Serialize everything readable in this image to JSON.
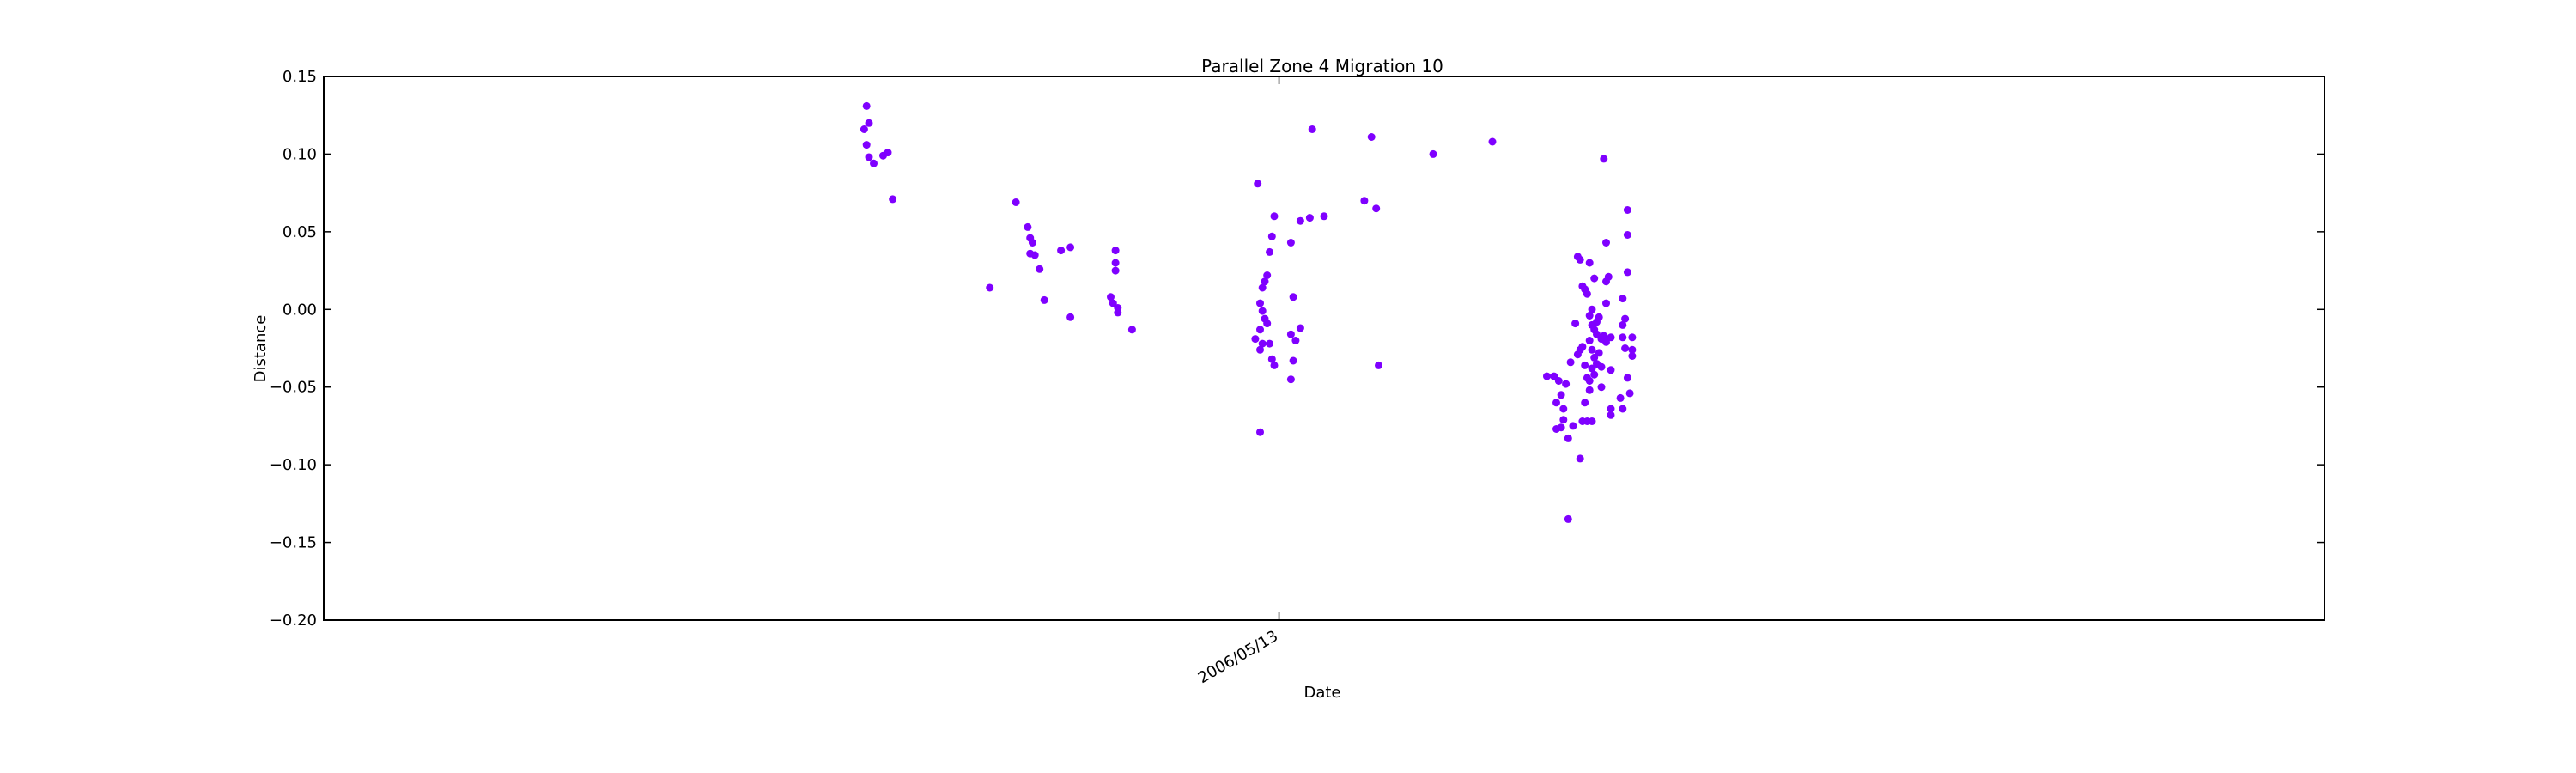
{
  "chart_data": {
    "type": "scatter",
    "title": "Parallel Zone 4 Migration 10",
    "xlabel": "Date",
    "ylabel": "Distance",
    "ylim": [
      -0.2,
      0.15
    ],
    "yticks": [
      0.15,
      0.1,
      0.05,
      0.0,
      -0.05,
      -0.1,
      -0.15,
      -0.2
    ],
    "ytick_labels": [
      "0.15",
      "0.10",
      "0.05",
      "0.00",
      "−0.05",
      "−0.10",
      "−0.15",
      "−0.20"
    ],
    "xlim": [
      "2005-04-05",
      "2007-07-28"
    ],
    "xticks": [
      "2006-05-13"
    ],
    "xtick_labels": [
      "2006/05/13"
    ],
    "grid": false,
    "legend": "none",
    "point_color": "#7f00ff",
    "points": [
      [
        "2005-11-20",
        0.131
      ],
      [
        "2005-11-21",
        0.12
      ],
      [
        "2005-11-19",
        0.116
      ],
      [
        "2005-11-20",
        0.106
      ],
      [
        "2005-11-21",
        0.098
      ],
      [
        "2005-11-23",
        0.094
      ],
      [
        "2005-11-27",
        0.099
      ],
      [
        "2005-11-29",
        0.101
      ],
      [
        "2005-12-01",
        0.071
      ],
      [
        "2006-01-11",
        0.014
      ],
      [
        "2006-01-22",
        0.069
      ],
      [
        "2006-01-27",
        0.053
      ],
      [
        "2006-01-28",
        0.046
      ],
      [
        "2006-01-29",
        0.043
      ],
      [
        "2006-01-28",
        0.036
      ],
      [
        "2006-01-30",
        0.035
      ],
      [
        "2006-02-01",
        0.026
      ],
      [
        "2006-02-03",
        0.006
      ],
      [
        "2006-02-10",
        0.038
      ],
      [
        "2006-02-14",
        0.04
      ],
      [
        "2006-02-14",
        -0.005
      ],
      [
        "2006-03-03",
        0.008
      ],
      [
        "2006-03-05",
        0.038
      ],
      [
        "2006-03-05",
        0.03
      ],
      [
        "2006-03-05",
        0.025
      ],
      [
        "2006-03-04",
        0.004
      ],
      [
        "2006-03-06",
        0.001
      ],
      [
        "2006-03-06",
        -0.002
      ],
      [
        "2006-03-12",
        -0.013
      ],
      [
        "2006-05-04",
        0.081
      ],
      [
        "2006-05-11",
        0.06
      ],
      [
        "2006-05-10",
        0.047
      ],
      [
        "2006-05-09",
        0.037
      ],
      [
        "2006-05-08",
        0.022
      ],
      [
        "2006-05-07",
        0.018
      ],
      [
        "2006-05-06",
        0.014
      ],
      [
        "2006-05-05",
        0.004
      ],
      [
        "2006-05-06",
        -0.001
      ],
      [
        "2006-05-07",
        -0.006
      ],
      [
        "2006-05-08",
        -0.009
      ],
      [
        "2006-05-05",
        -0.013
      ],
      [
        "2006-05-03",
        -0.019
      ],
      [
        "2006-05-06",
        -0.022
      ],
      [
        "2006-05-09",
        -0.022
      ],
      [
        "2006-05-05",
        -0.026
      ],
      [
        "2006-05-10",
        -0.032
      ],
      [
        "2006-05-11",
        -0.036
      ],
      [
        "2006-05-05",
        -0.079
      ],
      [
        "2006-05-18",
        0.043
      ],
      [
        "2006-05-19",
        0.008
      ],
      [
        "2006-05-18",
        -0.016
      ],
      [
        "2006-05-20",
        -0.02
      ],
      [
        "2006-05-22",
        -0.012
      ],
      [
        "2006-05-19",
        -0.033
      ],
      [
        "2006-05-18",
        -0.045
      ],
      [
        "2006-05-22",
        0.057
      ],
      [
        "2006-05-26",
        0.059
      ],
      [
        "2006-06-01",
        0.06
      ],
      [
        "2006-05-27",
        0.116
      ],
      [
        "2006-06-18",
        0.07
      ],
      [
        "2006-06-21",
        0.111
      ],
      [
        "2006-06-23",
        0.065
      ],
      [
        "2006-06-24",
        -0.036
      ],
      [
        "2006-07-17",
        0.1
      ],
      [
        "2006-08-11",
        0.108
      ],
      [
        "2006-09-03",
        -0.043
      ],
      [
        "2006-09-06",
        -0.043
      ],
      [
        "2006-09-07",
        -0.06
      ],
      [
        "2006-09-08",
        -0.046
      ],
      [
        "2006-09-09",
        -0.055
      ],
      [
        "2006-09-10",
        -0.064
      ],
      [
        "2006-09-11",
        -0.048
      ],
      [
        "2006-09-07",
        -0.077
      ],
      [
        "2006-09-09",
        -0.076
      ],
      [
        "2006-09-10",
        -0.071
      ],
      [
        "2006-09-12",
        -0.083
      ],
      [
        "2006-09-14",
        -0.075
      ],
      [
        "2006-09-13",
        -0.034
      ],
      [
        "2006-09-15",
        -0.009
      ],
      [
        "2006-09-16",
        0.034
      ],
      [
        "2006-09-17",
        0.032
      ],
      [
        "2006-09-18",
        0.015
      ],
      [
        "2006-09-19",
        0.013
      ],
      [
        "2006-09-20",
        0.01
      ],
      [
        "2006-09-16",
        -0.029
      ],
      [
        "2006-09-17",
        -0.026
      ],
      [
        "2006-09-18",
        -0.024
      ],
      [
        "2006-09-19",
        -0.036
      ],
      [
        "2006-09-20",
        -0.044
      ],
      [
        "2006-09-21",
        -0.052
      ],
      [
        "2006-09-19",
        -0.06
      ],
      [
        "2006-09-18",
        -0.072
      ],
      [
        "2006-09-20",
        -0.072
      ],
      [
        "2006-09-22",
        -0.072
      ],
      [
        "2006-09-17",
        -0.096
      ],
      [
        "2006-09-12",
        -0.135
      ],
      [
        "2006-09-21",
        0.03
      ],
      [
        "2006-09-23",
        0.02
      ],
      [
        "2006-09-22",
        0.0
      ],
      [
        "2006-09-21",
        -0.004
      ],
      [
        "2006-09-22",
        -0.01
      ],
      [
        "2006-09-23",
        -0.013
      ],
      [
        "2006-09-24",
        -0.016
      ],
      [
        "2006-09-21",
        -0.02
      ],
      [
        "2006-09-22",
        -0.026
      ],
      [
        "2006-09-23",
        -0.031
      ],
      [
        "2006-09-24",
        -0.035
      ],
      [
        "2006-09-22",
        -0.038
      ],
      [
        "2006-09-23",
        -0.042
      ],
      [
        "2006-09-21",
        -0.046
      ],
      [
        "2006-09-25",
        -0.005
      ],
      [
        "2006-09-26",
        -0.019
      ],
      [
        "2006-09-25",
        -0.028
      ],
      [
        "2006-09-26",
        -0.037
      ],
      [
        "2006-09-24",
        -0.008
      ],
      [
        "2006-09-27",
        -0.017
      ],
      [
        "2006-09-26",
        -0.05
      ],
      [
        "2006-09-27",
        0.097
      ],
      [
        "2006-09-28",
        0.043
      ],
      [
        "2006-09-28",
        0.018
      ],
      [
        "2006-09-29",
        0.021
      ],
      [
        "2006-09-28",
        0.004
      ],
      [
        "2006-09-28",
        -0.021
      ],
      [
        "2006-09-30",
        -0.018
      ],
      [
        "2006-09-30",
        -0.039
      ],
      [
        "2006-09-30",
        -0.064
      ],
      [
        "2006-09-30",
        -0.068
      ],
      [
        "2006-10-05",
        0.007
      ],
      [
        "2006-10-06",
        -0.006
      ],
      [
        "2006-10-05",
        -0.01
      ],
      [
        "2006-10-05",
        -0.018
      ],
      [
        "2006-10-06",
        -0.025
      ],
      [
        "2006-10-04",
        -0.057
      ],
      [
        "2006-10-05",
        -0.064
      ],
      [
        "2006-10-07",
        0.064
      ],
      [
        "2006-10-07",
        0.048
      ],
      [
        "2006-10-07",
        0.024
      ],
      [
        "2006-10-07",
        -0.044
      ],
      [
        "2006-10-08",
        -0.054
      ],
      [
        "2006-10-09",
        -0.018
      ],
      [
        "2006-10-09",
        -0.026
      ],
      [
        "2006-10-09",
        -0.03
      ]
    ]
  }
}
